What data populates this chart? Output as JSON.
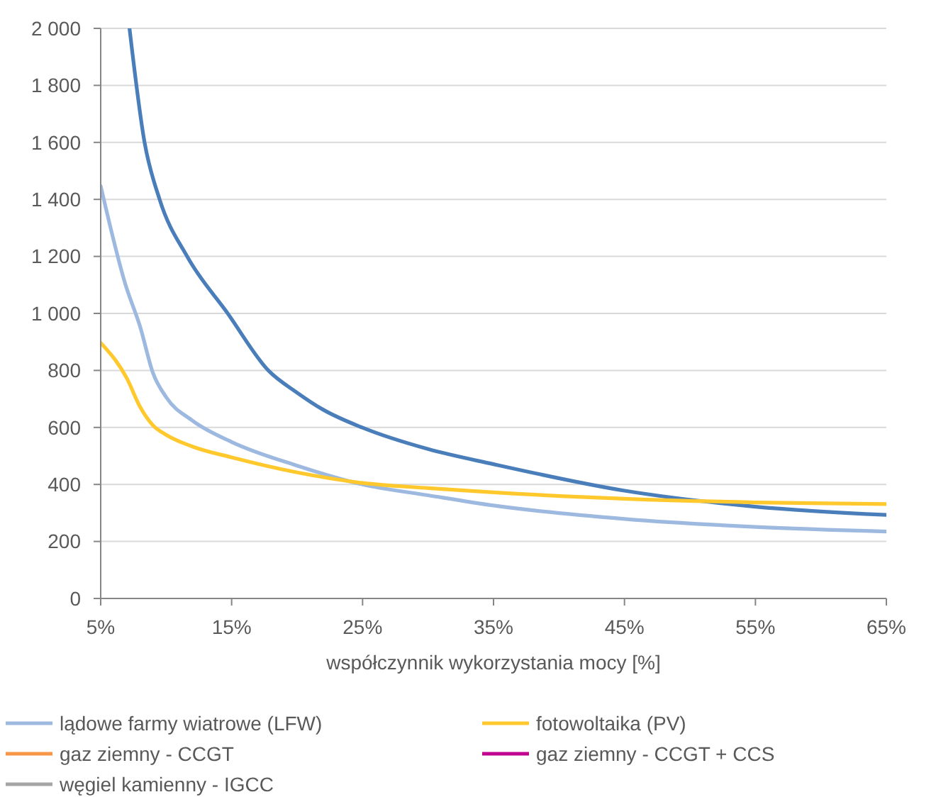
{
  "chart_data": {
    "type": "line",
    "xlabel": "współczynnik wykorzystania mocy [%]",
    "xlim": [
      5,
      65
    ],
    "ylim": [
      0,
      2000
    ],
    "xticks": [
      {
        "value": 5,
        "label": "5%"
      },
      {
        "value": 15,
        "label": "15%"
      },
      {
        "value": 25,
        "label": "25%"
      },
      {
        "value": 35,
        "label": "35%"
      },
      {
        "value": 45,
        "label": "45%"
      },
      {
        "value": 55,
        "label": "55%"
      },
      {
        "value": 65,
        "label": "65%"
      }
    ],
    "yticks": [
      0,
      200,
      400,
      600,
      800,
      {
        "value": 1000,
        "label": "1 000"
      },
      {
        "value": 1200,
        "label": "1 200"
      },
      {
        "value": 1400,
        "label": "1 400"
      },
      {
        "value": 1600,
        "label": "1 600"
      },
      {
        "value": 1800,
        "label": "1 800"
      },
      {
        "value": 2000,
        "label": "2 000"
      }
    ],
    "grid": "y",
    "legend": "bottom",
    "marker": "none",
    "line_style": "solid",
    "series": [
      {
        "color": "#4a7ebb",
        "x": [
          7.2,
          8.35,
          9.5,
          11.6,
          14.7,
          17.8,
          20,
          22,
          25,
          30,
          35,
          45,
          55,
          65
        ],
        "values": [
          2000,
          1600,
          1400,
          1200,
          1000,
          800,
          722,
          662,
          599,
          524,
          471,
          378,
          322,
          293
        ]
      },
      {
        "name": "lądowe farmy wiatrowe (LFW)",
        "color": "#9db9e0",
        "x": [
          5,
          6.9,
          8,
          9,
          10,
          12,
          15,
          20,
          25,
          30,
          35,
          45,
          55,
          65
        ],
        "values": [
          1447,
          1100,
          955,
          790,
          706,
          624,
          549,
          466,
          400,
          362,
          326,
          279,
          251,
          235
        ]
      },
      {
        "name": "fotowoltaika (PV)",
        "color": "#ffc92e",
        "x": [
          5,
          7,
          8,
          9,
          10,
          12,
          15,
          20,
          25,
          30,
          35,
          45,
          55,
          65
        ],
        "values": [
          897,
          772,
          673,
          607,
          574,
          533,
          495,
          442,
          405,
          387,
          372,
          350,
          337,
          331
        ]
      },
      {
        "name": "gaz ziemny - CCGT",
        "color": "#f79646"
      },
      {
        "name": "gaz ziemny - CCGT + CCS",
        "color": "#c0008f"
      },
      {
        "name": "węgiel kamienny - IGCC",
        "color": "#a5a5a5"
      }
    ]
  }
}
